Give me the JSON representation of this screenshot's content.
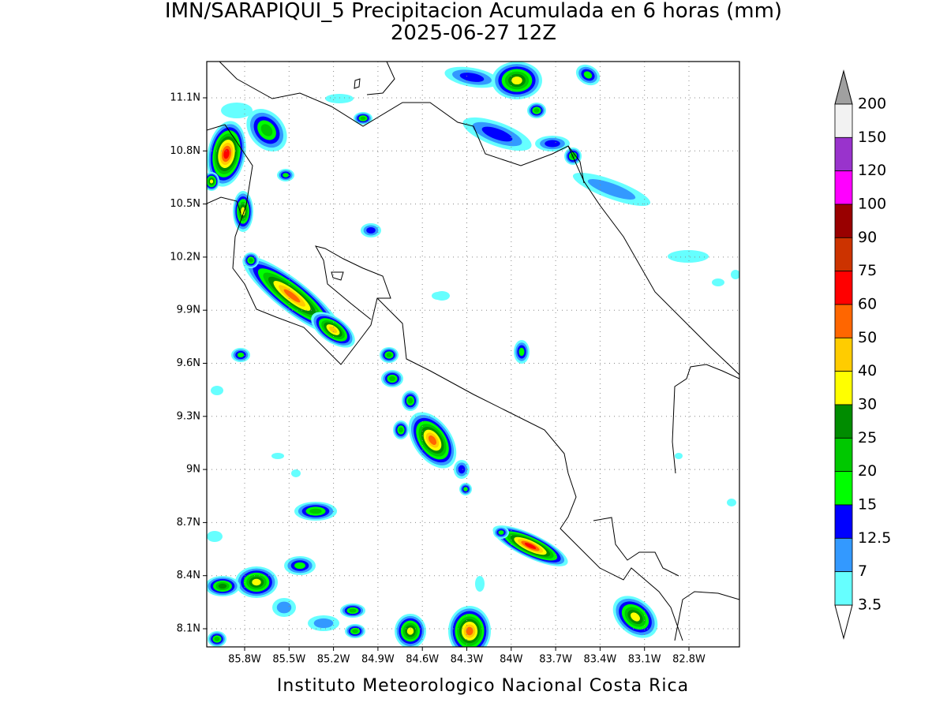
{
  "header": {
    "title": "IMN/SARAPIQUI_5 Precipitacion Acumulada en 6 horas (mm)",
    "subtitle": "2025-06-27 12Z"
  },
  "map": {
    "lat_labels": [
      "11.1N",
      "10.8N",
      "10.5N",
      "10.2N",
      "9.9N",
      "9.6N",
      "9.3N",
      "9N",
      "8.7N",
      "8.4N",
      "8.1N"
    ],
    "lon_labels": [
      "85.8W",
      "85.5W",
      "85.2W",
      "84.9W",
      "84.6W",
      "84.3W",
      "84W",
      "83.7W",
      "83.4W",
      "83.1W",
      "82.8W"
    ]
  },
  "colorbar": {
    "levels": [
      "200",
      "150",
      "120",
      "100",
      "90",
      "75",
      "60",
      "50",
      "40",
      "30",
      "25",
      "20",
      "15",
      "12.5",
      "7",
      "3.5"
    ],
    "colors": [
      "#f2f2f2",
      "#9933cc",
      "#ff00ff",
      "#990000",
      "#cc3300",
      "#ff0000",
      "#ff6600",
      "#ffcc00",
      "#ffff00",
      "#008c00",
      "#00c800",
      "#00ff00",
      "#0000ff",
      "#3399ff",
      "#66ffff"
    ]
  },
  "footer": "Instituto Meteorologico Nacional Costa Rica"
}
